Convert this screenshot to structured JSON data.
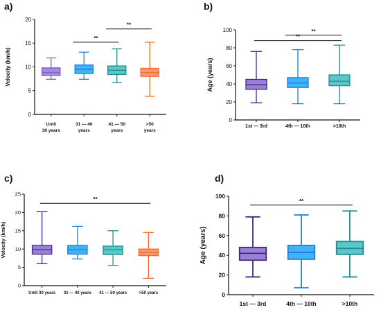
{
  "chart_data": [
    {
      "type": "box",
      "panel_label": "a)",
      "ylabel": "Velocity (km/h)",
      "ylim": [
        0,
        20
      ],
      "yticks": [
        0,
        5,
        10,
        15,
        20
      ],
      "categories": [
        "Until\n30 years",
        "31 — 40\nyears",
        "41 — 50\nyears",
        ">50\nyears"
      ],
      "boxes": [
        {
          "min": 7.4,
          "q1": 8.2,
          "median": 8.8,
          "q3": 9.8,
          "max": 11.9,
          "color": "#7B5CC8",
          "fill": "#A58BDC"
        },
        {
          "min": 7.4,
          "q1": 8.6,
          "median": 9.5,
          "q3": 10.4,
          "max": 13.1,
          "color": "#1E7BE3",
          "fill": "#3FB3F5"
        },
        {
          "min": 6.7,
          "q1": 8.4,
          "median": 9.3,
          "q3": 10.2,
          "max": 13.8,
          "color": "#1E8C92",
          "fill": "#5CC7C8"
        },
        {
          "min": 3.8,
          "q1": 8.0,
          "median": 8.8,
          "q3": 9.7,
          "max": 15.2,
          "color": "#F26A2E",
          "fill": "#F59A68"
        }
      ],
      "significance": [
        {
          "from": 1,
          "to": 2,
          "y": 15.2,
          "label": "**"
        },
        {
          "from": 2,
          "to": 3,
          "y": 18.0,
          "label": "**"
        }
      ]
    },
    {
      "type": "box",
      "panel_label": "b)",
      "ylabel": "Age (years)",
      "ylim": [
        0,
        100
      ],
      "yticks": [
        0,
        20,
        40,
        60,
        80,
        100
      ],
      "categories": [
        "1st — 3rd",
        "4th — 10th",
        ">10th"
      ],
      "boxes": [
        {
          "min": 19,
          "q1": 34,
          "median": 39,
          "q3": 45,
          "max": 76,
          "color": "#3D2A80",
          "fill": "#9C7FD6"
        },
        {
          "min": 18,
          "q1": 36,
          "median": 41,
          "q3": 47,
          "max": 78,
          "color": "#1E7BE3",
          "fill": "#3FB3F5"
        },
        {
          "min": 18,
          "q1": 38,
          "median": 43,
          "q3": 50,
          "max": 83,
          "color": "#1E8C92",
          "fill": "#5CC7C8"
        }
      ],
      "significance": [
        {
          "from": 0,
          "to": 2,
          "y": 88,
          "label": "**"
        },
        {
          "from": 1,
          "to": 2,
          "y": 94,
          "label": "**"
        }
      ]
    },
    {
      "type": "box",
      "panel_label": "c)",
      "ylabel": "Velocity (km/h)",
      "ylim": [
        0,
        25
      ],
      "yticks": [
        0,
        5,
        10,
        15,
        20,
        25
      ],
      "categories": [
        "Until 30 years",
        "31 — 40 years",
        "41 — 50 years",
        ">50 years"
      ],
      "boxes": [
        {
          "min": 6.0,
          "q1": 8.6,
          "median": 9.8,
          "q3": 11.0,
          "max": 20.2,
          "color": "#3D2A80",
          "fill": "#9C7FD6"
        },
        {
          "min": 7.3,
          "q1": 8.6,
          "median": 9.8,
          "q3": 11.0,
          "max": 16.2,
          "color": "#1E7BE3",
          "fill": "#3FB3F5"
        },
        {
          "min": 5.5,
          "q1": 8.5,
          "median": 9.8,
          "q3": 10.8,
          "max": 15.0,
          "color": "#1E8C92",
          "fill": "#5CC7C8"
        },
        {
          "min": 2.0,
          "q1": 8.2,
          "median": 9.0,
          "q3": 10.0,
          "max": 14.5,
          "color": "#F26A2E",
          "fill": "#F59A68"
        }
      ],
      "significance": [
        {
          "from": 0,
          "to": 3,
          "y": 22.5,
          "label": "**"
        }
      ]
    },
    {
      "type": "box",
      "panel_label": "d)",
      "ylabel": "Age (years)",
      "ylim": [
        0,
        100
      ],
      "yticks": [
        0,
        20,
        40,
        60,
        80,
        100
      ],
      "categories": [
        "1st — 3rd",
        "4th — 10th",
        ">10th"
      ],
      "boxes": [
        {
          "min": 18,
          "q1": 35,
          "median": 42,
          "q3": 48,
          "max": 79,
          "color": "#3D2A80",
          "fill": "#9C7FD6"
        },
        {
          "min": 7,
          "q1": 36,
          "median": 43,
          "q3": 50,
          "max": 81,
          "color": "#1E7BE3",
          "fill": "#3FB3F5"
        },
        {
          "min": 18,
          "q1": 41,
          "median": 47,
          "q3": 54,
          "max": 85,
          "color": "#1E8C92",
          "fill": "#5CC7C8"
        }
      ],
      "significance": [
        {
          "from": 0,
          "to": 2,
          "y": 91,
          "label": "**"
        }
      ]
    }
  ]
}
